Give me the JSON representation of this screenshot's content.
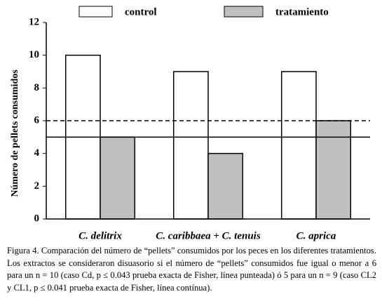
{
  "chart_data": {
    "type": "bar",
    "categories": [
      "C. delitrix",
      "C. caribbaea + C. tenuis",
      "C. aprica"
    ],
    "series": [
      {
        "name": "control",
        "color": "#ffffff",
        "values": [
          10,
          9,
          9
        ]
      },
      {
        "name": "tratamiento",
        "color": "#c0c0c0",
        "values": [
          5,
          4,
          6
        ]
      }
    ],
    "ylabel": "Número de pellets consumidos",
    "ylim": [
      0,
      12
    ],
    "yticks": [
      0,
      2,
      4,
      6,
      8,
      10,
      12
    ],
    "reference_lines": [
      {
        "value": 6,
        "style": "dashed"
      },
      {
        "value": 5,
        "style": "solid"
      }
    ],
    "legend": "top"
  },
  "caption": "Figura 4. Comparación del número de “pellets” consumidos por los peces en los diferentes tratamientos. Los extractos se consideraron disuasorio si el número de “pellets” consumidos fue igual o menor a 6 para un n = 10 (caso Cd, p ≤ 0.043 prueba exacta de Fisher, línea punteada) ó 5 para un n = 9 (caso CL2 y CL1, p ≤ 0.041 prueba exacta de Fisher, línea contínua)."
}
